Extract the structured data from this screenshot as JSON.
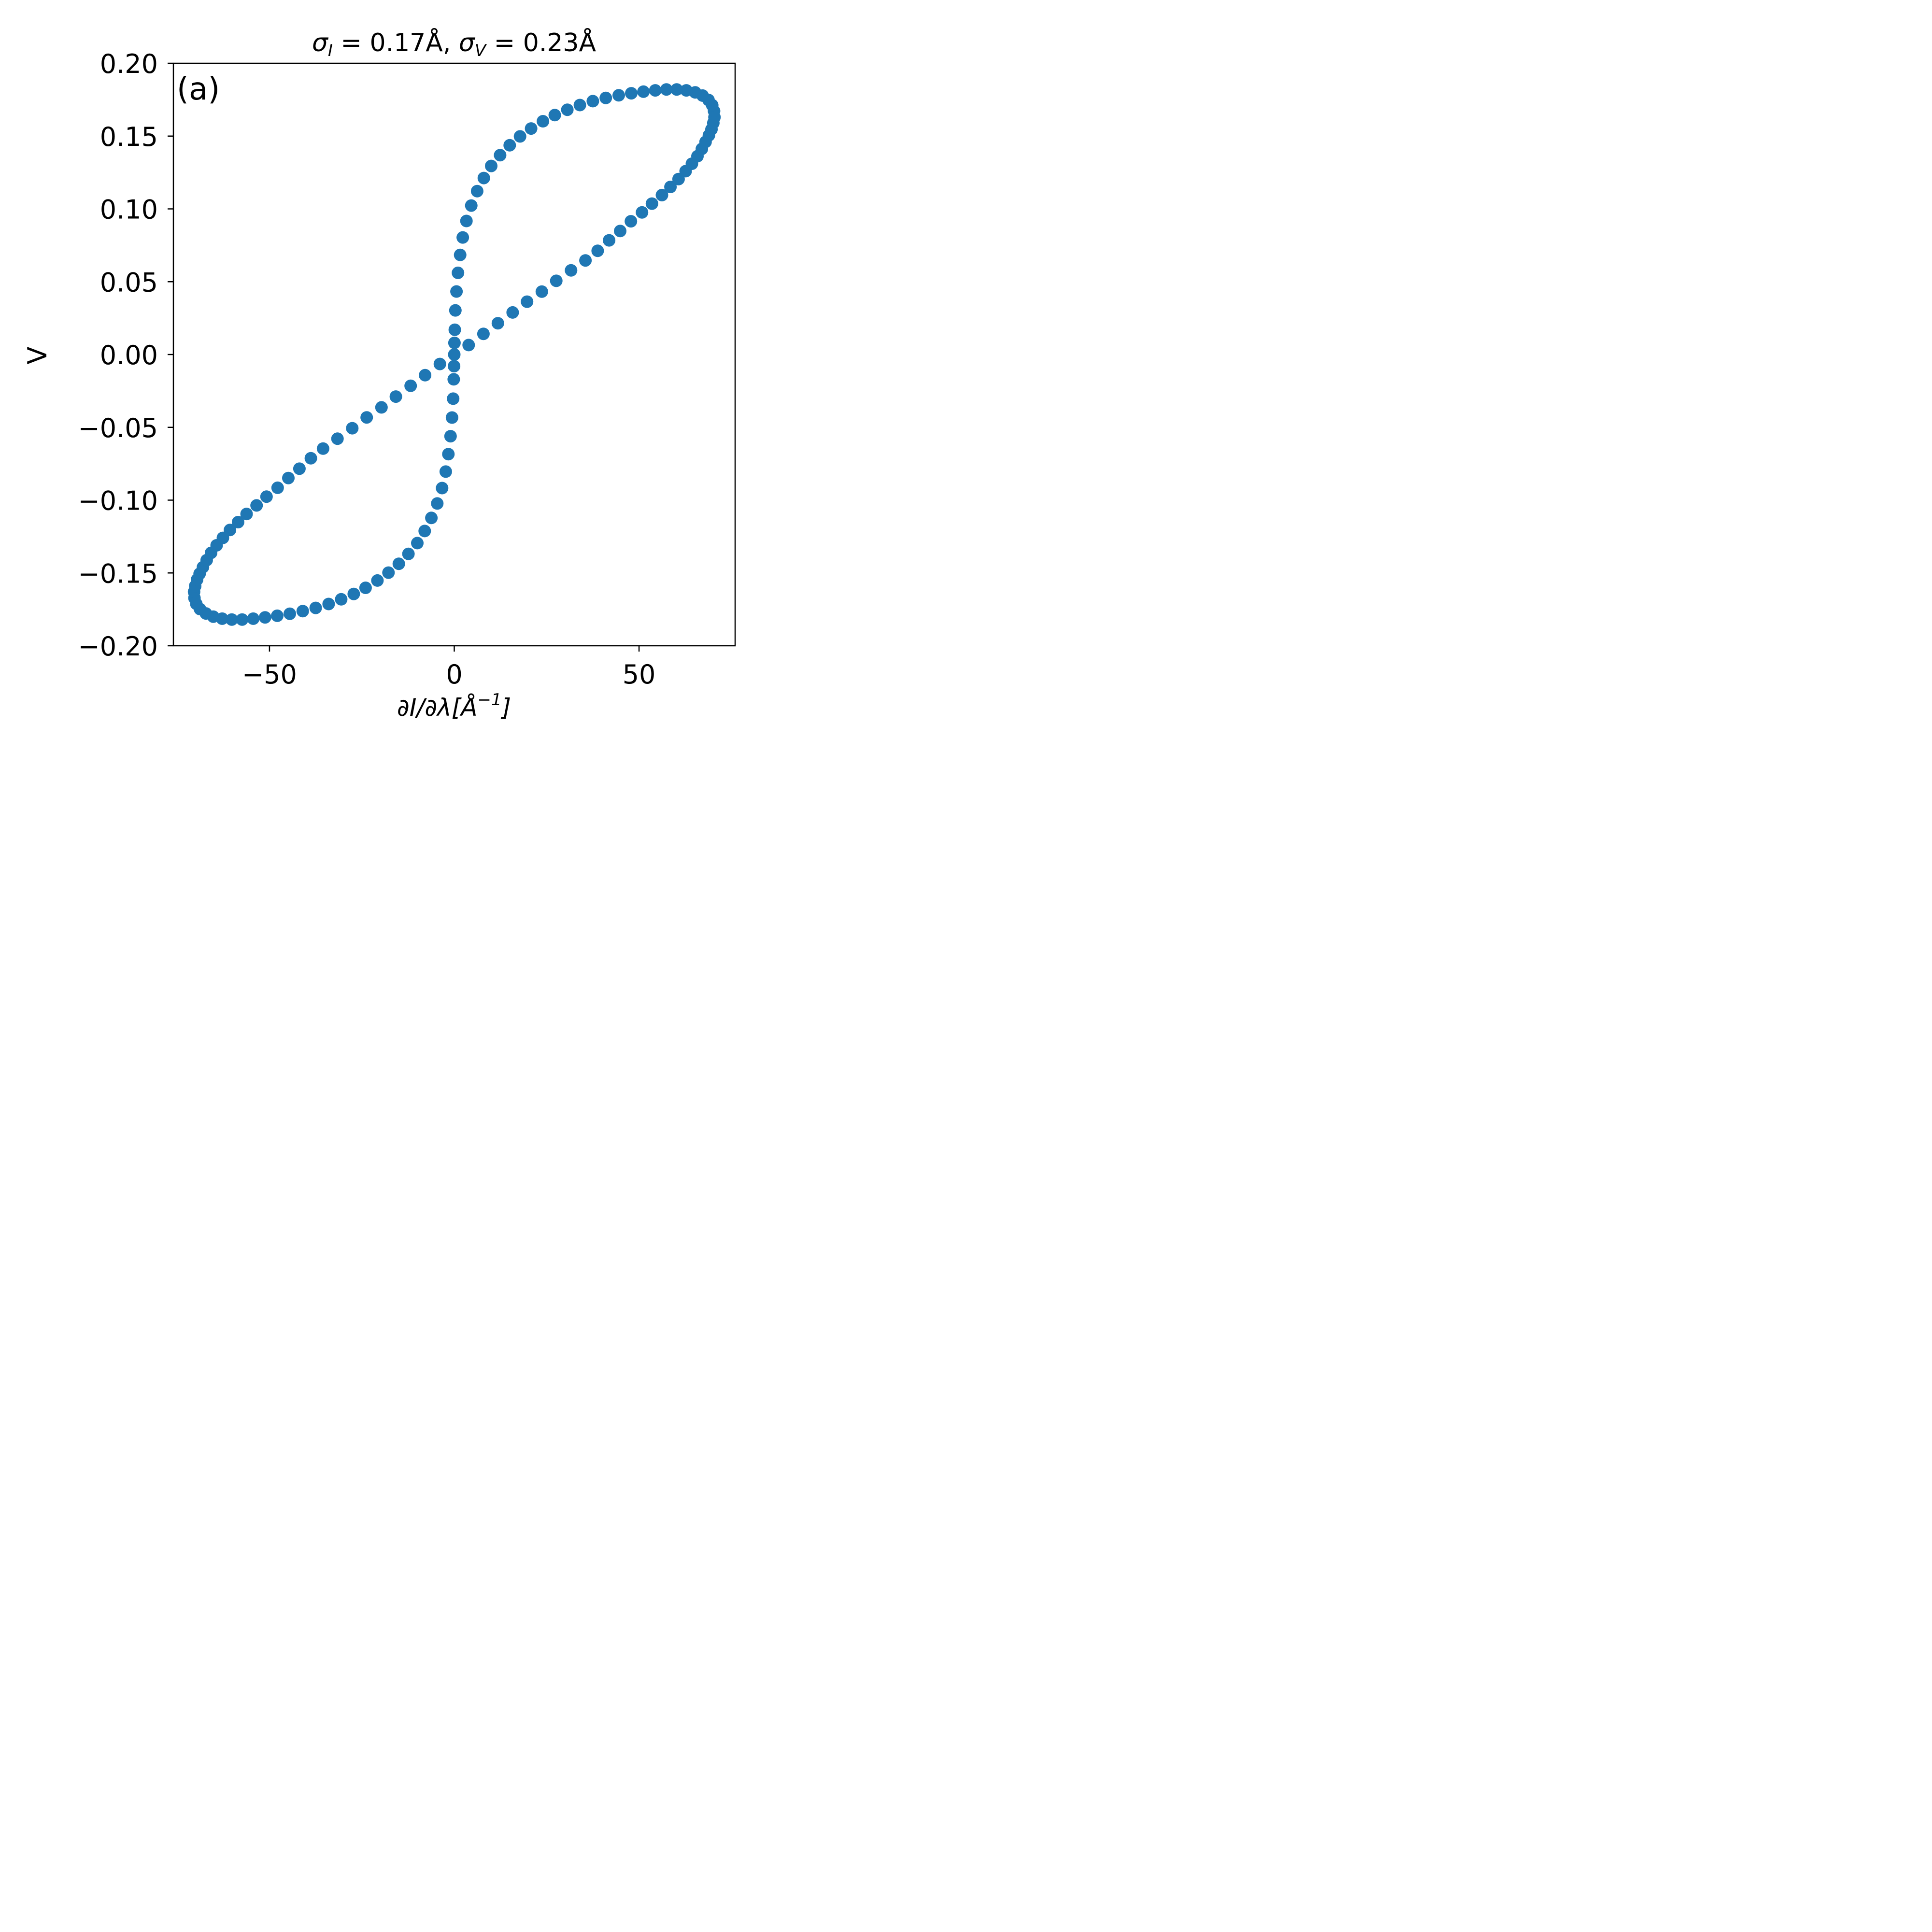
{
  "chart_data": {
    "type": "scatter",
    "title": "σ_I = 0.17Å, σ_V = 0.23Å",
    "title_parts": {
      "sigma": "σ",
      "sub_i": "I",
      "eq_i": " = 0.17Å, ",
      "sub_v": "V",
      "eq_v": " = 0.23Å"
    },
    "panel_label": "(a)",
    "xlabel": "∂I/∂λ[Å⁻¹]",
    "xlabel_parts": {
      "main": "∂I/∂λ[Å",
      "sup": "−1",
      "end": "]"
    },
    "ylabel": "V",
    "xlim": [
      -76,
      76
    ],
    "ylim": [
      -0.2,
      0.2
    ],
    "x_ticks": [
      -50,
      0,
      50
    ],
    "x_tick_labels": [
      "−50",
      "0",
      "50"
    ],
    "y_ticks": [
      -0.2,
      -0.15,
      -0.1,
      -0.05,
      0.0,
      0.05,
      0.1,
      0.15,
      0.2
    ],
    "y_tick_labels": [
      "−0.20",
      "−0.15",
      "−0.10",
      "−0.05",
      "0.00",
      "0.05",
      "0.10",
      "0.15",
      "0.20"
    ],
    "grid": false,
    "marker_color": "#1f77b4",
    "series": [
      {
        "values": [
          [
            0.0,
            0.0
          ],
          [
            3.9,
            0.0065
          ],
          [
            7.9,
            0.0142
          ],
          [
            11.8,
            0.0215
          ],
          [
            15.8,
            0.0289
          ],
          [
            19.7,
            0.0363
          ],
          [
            23.7,
            0.0432
          ],
          [
            27.6,
            0.0506
          ],
          [
            31.6,
            0.0578
          ],
          [
            35.5,
            0.0646
          ],
          [
            38.8,
            0.0712
          ],
          [
            41.9,
            0.0784
          ],
          [
            44.9,
            0.0848
          ],
          [
            47.8,
            0.0915
          ],
          [
            50.8,
            0.0976
          ],
          [
            53.5,
            0.1036
          ],
          [
            56.2,
            0.1095
          ],
          [
            58.5,
            0.1151
          ],
          [
            60.7,
            0.1205
          ],
          [
            62.6,
            0.1259
          ],
          [
            64.3,
            0.131
          ],
          [
            65.8,
            0.1362
          ],
          [
            67.0,
            0.1412
          ],
          [
            68.0,
            0.146
          ],
          [
            68.9,
            0.1505
          ],
          [
            69.6,
            0.1546
          ],
          [
            70.1,
            0.159
          ],
          [
            70.4,
            0.163
          ],
          [
            70.3,
            0.1672
          ],
          [
            69.8,
            0.1712
          ],
          [
            68.8,
            0.1748
          ],
          [
            67.2,
            0.1778
          ],
          [
            65.2,
            0.18
          ],
          [
            62.8,
            0.1814
          ],
          [
            60.2,
            0.182
          ],
          [
            57.4,
            0.182
          ],
          [
            54.4,
            0.1814
          ],
          [
            51.2,
            0.1805
          ],
          [
            47.9,
            0.1794
          ],
          [
            44.5,
            0.178
          ],
          [
            41.0,
            0.1762
          ],
          [
            37.5,
            0.174
          ],
          [
            34.0,
            0.1713
          ],
          [
            30.6,
            0.1681
          ],
          [
            27.2,
            0.1644
          ],
          [
            24.0,
            0.1602
          ],
          [
            20.8,
            0.1552
          ],
          [
            17.8,
            0.1498
          ],
          [
            15.0,
            0.1437
          ],
          [
            12.4,
            0.1369
          ],
          [
            10.0,
            0.1295
          ],
          [
            8.0,
            0.1212
          ],
          [
            6.2,
            0.1122
          ],
          [
            4.6,
            0.1023
          ],
          [
            3.3,
            0.0917
          ],
          [
            2.3,
            0.0804
          ],
          [
            1.6,
            0.0684
          ],
          [
            1.0,
            0.0561
          ],
          [
            0.6,
            0.0433
          ],
          [
            0.3,
            0.0303
          ],
          [
            0.15,
            0.017
          ],
          [
            0.05,
            0.008
          ],
          [
            -0.05,
            -0.008
          ],
          [
            -0.15,
            -0.017
          ],
          [
            -0.3,
            -0.0303
          ],
          [
            -0.6,
            -0.0433
          ],
          [
            -1.0,
            -0.0561
          ],
          [
            -1.6,
            -0.0684
          ],
          [
            -2.3,
            -0.0804
          ],
          [
            -3.3,
            -0.0917
          ],
          [
            -4.6,
            -0.1023
          ],
          [
            -6.2,
            -0.1122
          ],
          [
            -8.0,
            -0.1212
          ],
          [
            -10.0,
            -0.1295
          ],
          [
            -12.4,
            -0.1369
          ],
          [
            -15.0,
            -0.1437
          ],
          [
            -17.8,
            -0.1498
          ],
          [
            -20.8,
            -0.1552
          ],
          [
            -24.0,
            -0.1602
          ],
          [
            -27.2,
            -0.1644
          ],
          [
            -30.6,
            -0.1681
          ],
          [
            -34.0,
            -0.1713
          ],
          [
            -37.5,
            -0.174
          ],
          [
            -41.0,
            -0.1762
          ],
          [
            -44.5,
            -0.178
          ],
          [
            -47.9,
            -0.1794
          ],
          [
            -51.2,
            -0.1805
          ],
          [
            -54.4,
            -0.1814
          ],
          [
            -57.4,
            -0.182
          ],
          [
            -60.2,
            -0.182
          ],
          [
            -62.8,
            -0.1814
          ],
          [
            -65.2,
            -0.18
          ],
          [
            -67.2,
            -0.1778
          ],
          [
            -68.8,
            -0.1748
          ],
          [
            -69.8,
            -0.1712
          ],
          [
            -70.3,
            -0.1672
          ],
          [
            -70.4,
            -0.163
          ],
          [
            -70.1,
            -0.159
          ],
          [
            -69.6,
            -0.1546
          ],
          [
            -68.9,
            -0.1505
          ],
          [
            -68.0,
            -0.146
          ],
          [
            -67.0,
            -0.1412
          ],
          [
            -65.8,
            -0.1362
          ],
          [
            -64.3,
            -0.131
          ],
          [
            -62.6,
            -0.1259
          ],
          [
            -60.7,
            -0.1205
          ],
          [
            -58.5,
            -0.1151
          ],
          [
            -56.2,
            -0.1095
          ],
          [
            -53.5,
            -0.1036
          ],
          [
            -50.8,
            -0.0976
          ],
          [
            -47.8,
            -0.0915
          ],
          [
            -44.9,
            -0.0848
          ],
          [
            -41.9,
            -0.0784
          ],
          [
            -38.8,
            -0.0712
          ],
          [
            -35.5,
            -0.0646
          ],
          [
            -31.6,
            -0.0578
          ],
          [
            -27.6,
            -0.0506
          ],
          [
            -23.7,
            -0.0432
          ],
          [
            -19.7,
            -0.0363
          ],
          [
            -15.8,
            -0.0289
          ],
          [
            -11.8,
            -0.0215
          ],
          [
            -7.9,
            -0.0142
          ],
          [
            -3.9,
            -0.0065
          ]
        ]
      }
    ]
  }
}
